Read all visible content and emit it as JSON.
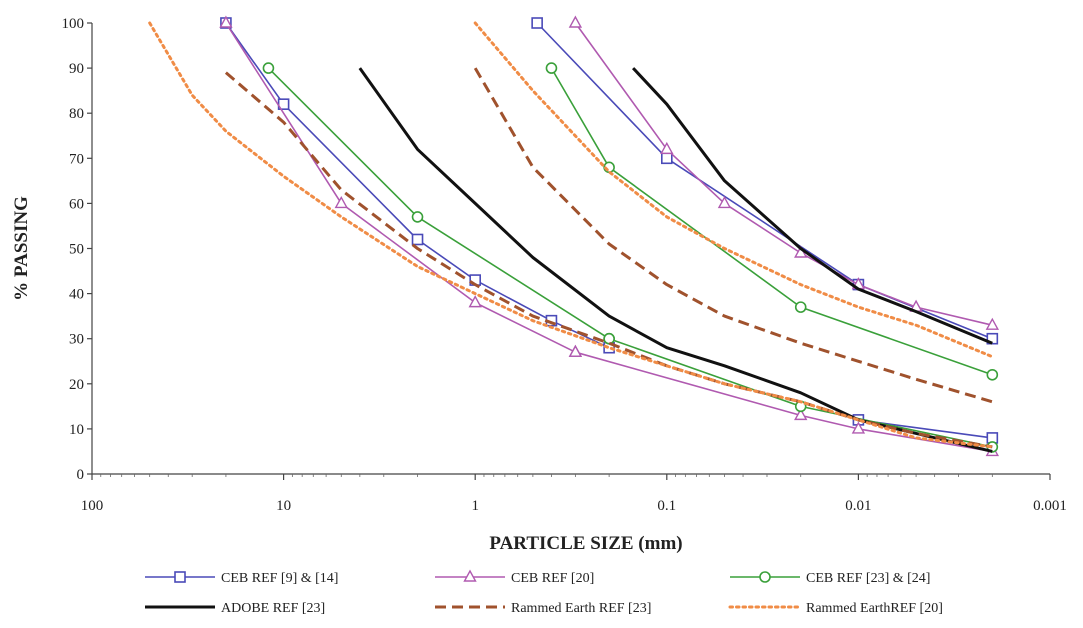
{
  "chart_data": {
    "type": "line",
    "title": "",
    "xlabel": "PARTICLE SIZE (mm)",
    "ylabel": "% PASSING",
    "x_scale": "log",
    "x_reversed": true,
    "xlim": [
      100,
      0.001
    ],
    "ylim": [
      0,
      100
    ],
    "x_ticks": [
      100,
      10,
      1,
      0.1,
      0.01,
      0.001
    ],
    "x_tick_labels": [
      "100",
      "10",
      "1",
      "0.1",
      "0.01",
      "0.001"
    ],
    "y_ticks": [
      0,
      10,
      20,
      30,
      40,
      50,
      60,
      70,
      80,
      90,
      100
    ],
    "y_tick_labels": [
      "0",
      "10",
      "20",
      "30",
      "40",
      "50",
      "60",
      "70",
      "80",
      "90",
      "100"
    ],
    "grid": false,
    "legend_position": "bottom",
    "series": [
      {
        "name": "CEB REF [9] & [14]",
        "group": "a",
        "color": "#4a4ab8",
        "marker": "square",
        "x": [
          20,
          10,
          2,
          1,
          0.4,
          0.2
        ],
        "y": [
          100,
          82,
          52,
          43,
          34,
          28
        ]
      },
      {
        "name": "CEB REF [9] & [14]",
        "group": "b",
        "color": "#4a4ab8",
        "marker": "square",
        "x": [
          0.475,
          0.1,
          0.01,
          0.002
        ],
        "y": [
          100,
          70,
          42,
          30
        ]
      },
      {
        "name": "CEB REF [9] & [14]",
        "group": "c",
        "color": "#4a4ab8",
        "marker": "square",
        "x": [
          0.01,
          0.002
        ],
        "y": [
          12,
          8
        ]
      },
      {
        "name": "CEB REF [20]",
        "group": "a",
        "color": "#b05ab0",
        "marker": "triangle",
        "x": [
          20,
          5,
          1,
          0.3
        ],
        "y": [
          100,
          60,
          38,
          27
        ]
      },
      {
        "name": "CEB REF [20]",
        "group": "b",
        "color": "#b05ab0",
        "marker": "triangle",
        "x": [
          0.3,
          0.1,
          0.05,
          0.02,
          0.01,
          0.005,
          0.002
        ],
        "y": [
          100,
          72,
          60,
          49,
          42,
          37,
          33
        ]
      },
      {
        "name": "CEB REF [20]",
        "group": "c",
        "color": "#b05ab0",
        "marker": "triangle",
        "x": [
          0.3,
          0.02,
          0.01,
          0.002
        ],
        "y": [
          27,
          13,
          10,
          5
        ]
      },
      {
        "name": "CEB REF [23] & [24]",
        "group": "a",
        "color": "#3aa03a",
        "marker": "circle",
        "x": [
          12,
          2,
          0.2
        ],
        "y": [
          90,
          57,
          30
        ]
      },
      {
        "name": "CEB REF [23] & [24]",
        "group": "b",
        "color": "#3aa03a",
        "marker": "circle",
        "x": [
          0.4,
          0.2,
          0.02,
          0.002
        ],
        "y": [
          90,
          68,
          37,
          22
        ]
      },
      {
        "name": "CEB REF [23] & [24]",
        "group": "c",
        "color": "#3aa03a",
        "marker": "circle",
        "x": [
          0.2,
          0.02,
          0.002
        ],
        "y": [
          30,
          15,
          6
        ]
      },
      {
        "name": "ADOBE REF [23]",
        "group": "a",
        "color": "#111111",
        "marker": "none",
        "x": [
          4,
          2,
          1,
          0.5,
          0.2,
          0.1,
          0.05,
          0.02,
          0.01,
          0.005,
          0.002
        ],
        "y": [
          90,
          72,
          60,
          48,
          35,
          28,
          24,
          18,
          12,
          9,
          5
        ]
      },
      {
        "name": "ADOBE REF [23]",
        "group": "b",
        "color": "#111111",
        "marker": "none",
        "x": [
          0.15,
          0.1,
          0.05,
          0.02,
          0.01,
          0.005,
          0.002
        ],
        "y": [
          90,
          82,
          65,
          50,
          41,
          36,
          29
        ]
      },
      {
        "name": "Rammed Earth REF [23]",
        "group": "a",
        "color": "#a0522d",
        "marker": "none",
        "x": [
          20,
          10,
          5,
          2,
          1,
          0.5,
          0.2,
          0.1,
          0.05,
          0.02,
          0.01,
          0.005,
          0.002
        ],
        "y": [
          89,
          78,
          63,
          50,
          42,
          35,
          29,
          24,
          20,
          16,
          12,
          9,
          6
        ]
      },
      {
        "name": "Rammed Earth REF [23]",
        "group": "b",
        "color": "#a0522d",
        "marker": "none",
        "x": [
          1,
          0.5,
          0.2,
          0.1,
          0.05,
          0.02,
          0.01,
          0.005,
          0.002
        ],
        "y": [
          90,
          68,
          51,
          42,
          35,
          29,
          25,
          21,
          16
        ]
      },
      {
        "name": "Rammed EarthREF [20]",
        "group": "a",
        "color": "#f08c46",
        "marker": "none",
        "x": [
          50,
          30,
          20,
          10,
          5,
          2,
          1,
          0.5,
          0.2,
          0.1,
          0.05,
          0.02,
          0.01,
          0.005,
          0.002
        ],
        "y": [
          100,
          84,
          76,
          66,
          57,
          46,
          40,
          34,
          28,
          24,
          20,
          16,
          12,
          8,
          6
        ]
      },
      {
        "name": "Rammed EarthREF [20]",
        "group": "b",
        "color": "#f08c46",
        "marker": "none",
        "x": [
          1,
          0.5,
          0.2,
          0.1,
          0.05,
          0.02,
          0.01,
          0.005,
          0.002
        ],
        "y": [
          100,
          85,
          67,
          57,
          50,
          42,
          37,
          33,
          26
        ]
      }
    ],
    "legend": [
      {
        "label": "CEB REF [9] & [14]",
        "color": "#4a4ab8",
        "marker": "square",
        "dash": "solid",
        "width": 1.6
      },
      {
        "label": "CEB REF [20]",
        "color": "#b05ab0",
        "marker": "triangle",
        "dash": "solid",
        "width": 1.6
      },
      {
        "label": "CEB REF [23] & [24]",
        "color": "#3aa03a",
        "marker": "circle",
        "dash": "solid",
        "width": 1.6
      },
      {
        "label": "ADOBE REF [23]",
        "color": "#111111",
        "marker": "none",
        "dash": "solid",
        "width": 3
      },
      {
        "label": "Rammed Earth REF [23]",
        "color": "#a0522d",
        "marker": "none",
        "dash": "long-dash",
        "width": 3
      },
      {
        "label": "Rammed EarthREF [20]",
        "color": "#f08c46",
        "marker": "none",
        "dash": "dot",
        "width": 3
      }
    ]
  }
}
